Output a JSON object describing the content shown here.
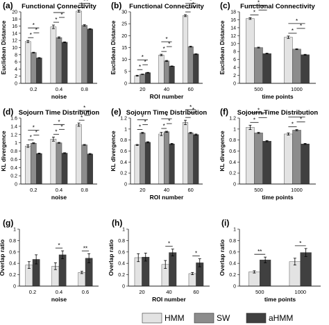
{
  "colors": {
    "HMM": "#e3e3e3",
    "SW": "#8c8c8c",
    "aHMM": "#404040",
    "axis": "#222222",
    "bracket": "#111111"
  },
  "legend": {
    "items": [
      "HMM",
      "SW",
      "aHMM"
    ]
  },
  "chart_data": [
    {
      "type": "bar",
      "panel_label": "(a)",
      "title": "Functional Connectivity",
      "xlabel": "noise",
      "ylabel": "Euclidean Distance",
      "ylim": [
        0,
        20
      ],
      "yticks": [
        "0",
        "2",
        "4",
        "6",
        "8",
        "10",
        "12",
        "14",
        "16",
        "18",
        "20"
      ],
      "categories": [
        "0.2",
        "0.4",
        "0.8"
      ],
      "series": [
        {
          "name": "HMM",
          "values": [
            11.7,
            15.8,
            20.2
          ]
        },
        {
          "name": "SW",
          "values": [
            8.6,
            12.8,
            16.2
          ]
        },
        {
          "name": "aHMM",
          "values": [
            7.1,
            11.5,
            15.2
          ]
        }
      ],
      "errors": [
        [
          0.3,
          0.5,
          0.3
        ],
        [
          0.1,
          0.2,
          0.2
        ],
        [
          0.1,
          0.1,
          0.1
        ]
      ],
      "significance": [
        {
          "cat": 0,
          "from": 0,
          "to": 1,
          "label": "*"
        },
        {
          "cat": 0,
          "from": 1,
          "to": 2,
          "label": "*"
        },
        {
          "cat": 0,
          "from": 0,
          "to": 2,
          "label": "*"
        },
        {
          "cat": 1,
          "from": 0,
          "to": 1,
          "label": "*"
        },
        {
          "cat": 1,
          "from": 1,
          "to": 2,
          "label": "*"
        },
        {
          "cat": 1,
          "from": 0,
          "to": 2,
          "label": "*"
        },
        {
          "cat": 2,
          "from": 0,
          "to": 1,
          "label": "*"
        },
        {
          "cat": 2,
          "from": 1,
          "to": 2,
          "label": "*"
        },
        {
          "cat": 2,
          "from": 0,
          "to": 2,
          "label": "*"
        }
      ]
    },
    {
      "type": "bar",
      "panel_label": "(b)",
      "title": "Functional Connectivity",
      "xlabel": "ROI number",
      "ylabel": "Euclidean Distance",
      "ylim": [
        0,
        30
      ],
      "yticks": [
        "0",
        "5",
        "10",
        "15",
        "20",
        "25",
        "30"
      ],
      "categories": [
        "20",
        "40",
        "60"
      ],
      "series": [
        {
          "name": "HMM",
          "values": [
            3.2,
            11.9,
            28.4
          ]
        },
        {
          "name": "SW",
          "values": [
            3.8,
            9.4,
            15.4
          ]
        },
        {
          "name": "aHMM",
          "values": [
            4.5,
            7.2,
            12.3
          ]
        }
      ],
      "errors": [
        [
          0.2,
          0.3,
          0.4
        ],
        [
          0.1,
          0.2,
          0.2
        ],
        [
          0.1,
          0.1,
          0.1
        ]
      ],
      "significance": [
        {
          "cat": 0,
          "from": 0,
          "to": 1,
          "label": "*"
        },
        {
          "cat": 0,
          "from": 1,
          "to": 2,
          "label": "*"
        },
        {
          "cat": 0,
          "from": 0,
          "to": 2,
          "label": "*"
        },
        {
          "cat": 1,
          "from": 0,
          "to": 1,
          "label": "*"
        },
        {
          "cat": 1,
          "from": 1,
          "to": 2,
          "label": "*"
        },
        {
          "cat": 1,
          "from": 0,
          "to": 2,
          "label": "*"
        },
        {
          "cat": 2,
          "from": 0,
          "to": 1,
          "label": "*"
        },
        {
          "cat": 2,
          "from": 1,
          "to": 2,
          "label": "*"
        },
        {
          "cat": 2,
          "from": 0,
          "to": 2,
          "label": "*"
        }
      ]
    },
    {
      "type": "bar",
      "panel_label": "(c)",
      "title": "Functional Connectivity",
      "xlabel": "time points",
      "ylabel": "Euclidean Distance",
      "ylim": [
        0,
        18
      ],
      "yticks": [
        "0",
        "2",
        "4",
        "6",
        "8",
        "10",
        "12",
        "14",
        "16",
        "18"
      ],
      "categories": [
        "500",
        "1000"
      ],
      "series": [
        {
          "name": "HMM",
          "values": [
            16.3,
            11.6
          ]
        },
        {
          "name": "SW",
          "values": [
            9.0,
            8.6
          ]
        },
        {
          "name": "aHMM",
          "values": [
            7.5,
            7.2
          ]
        }
      ],
      "errors": [
        [
          0.2,
          0.3
        ],
        [
          0.1,
          0.1
        ],
        [
          0.1,
          0.1
        ]
      ],
      "significance": [
        {
          "cat": 0,
          "from": 0,
          "to": 1,
          "label": "*"
        },
        {
          "cat": 0,
          "from": 1,
          "to": 2,
          "label": "*"
        },
        {
          "cat": 0,
          "from": 0,
          "to": 2,
          "label": "*"
        },
        {
          "cat": 1,
          "from": 0,
          "to": 1,
          "label": "*"
        },
        {
          "cat": 1,
          "from": 1,
          "to": 2,
          "label": "*"
        },
        {
          "cat": 1,
          "from": 0,
          "to": 2,
          "label": "*"
        }
      ]
    },
    {
      "type": "bar",
      "panel_label": "(d)",
      "title": "Sojourn Time Distribution",
      "xlabel": "noise",
      "ylabel": "KL divergence",
      "ylim": [
        0,
        1.6
      ],
      "yticks": [
        "0",
        "0.2",
        "0.4",
        "0.6",
        "0.8",
        "1",
        "1.2",
        "1.4",
        "1.6"
      ],
      "categories": [
        "0.2",
        "0.4",
        "0.8"
      ],
      "series": [
        {
          "name": "HMM",
          "values": [
            0.92,
            1.09,
            1.44
          ]
        },
        {
          "name": "SW",
          "values": [
            0.99,
            1.0,
            0.95
          ]
        },
        {
          "name": "aHMM",
          "values": [
            0.74,
            0.75,
            0.73
          ]
        }
      ],
      "errors": [
        [
          0.03,
          0.05,
          0.04
        ],
        [
          0.01,
          0.01,
          0.01
        ],
        [
          0.01,
          0.01,
          0.01
        ]
      ],
      "significance": [
        {
          "cat": 0,
          "from": 0,
          "to": 1,
          "label": "*"
        },
        {
          "cat": 0,
          "from": 1,
          "to": 2,
          "label": "*"
        },
        {
          "cat": 0,
          "from": 0,
          "to": 2,
          "label": "*"
        },
        {
          "cat": 1,
          "from": 0,
          "to": 1,
          "label": "*"
        },
        {
          "cat": 1,
          "from": 1,
          "to": 2,
          "label": "*"
        },
        {
          "cat": 1,
          "from": 0,
          "to": 2,
          "label": "*"
        },
        {
          "cat": 2,
          "from": 0,
          "to": 1,
          "label": "*"
        },
        {
          "cat": 2,
          "from": 1,
          "to": 2,
          "label": "*"
        },
        {
          "cat": 2,
          "from": 0,
          "to": 2,
          "label": "*"
        }
      ]
    },
    {
      "type": "bar",
      "panel_label": "(e)",
      "title": "Sojourn Time Distribution",
      "xlabel": "ROI number",
      "ylabel": "KL divergence",
      "ylim": [
        0,
        1.2
      ],
      "yticks": [
        "0",
        "0.2",
        "0.4",
        "0.6",
        "0.8",
        "1",
        "1.2"
      ],
      "categories": [
        "20",
        "40",
        "60"
      ],
      "series": [
        {
          "name": "HMM",
          "values": [
            0.71,
            0.91,
            1.12
          ]
        },
        {
          "name": "SW",
          "values": [
            0.93,
            0.95,
            0.93
          ]
        },
        {
          "name": "aHMM",
          "values": [
            0.76,
            0.73,
            0.9
          ]
        }
      ],
      "errors": [
        [
          0.01,
          0.03,
          0.04
        ],
        [
          0.01,
          0.01,
          0.01
        ],
        [
          0.01,
          0.01,
          0.01
        ]
      ],
      "significance": [
        {
          "cat": 0,
          "from": 0,
          "to": 1,
          "label": "*"
        },
        {
          "cat": 0,
          "from": 1,
          "to": 2,
          "label": "*"
        },
        {
          "cat": 0,
          "from": 0,
          "to": 2,
          "label": "*"
        },
        {
          "cat": 1,
          "from": 0,
          "to": 1,
          "label": "*"
        },
        {
          "cat": 1,
          "from": 1,
          "to": 2,
          "label": "*"
        },
        {
          "cat": 1,
          "from": 0,
          "to": 2,
          "label": "*"
        },
        {
          "cat": 2,
          "from": 0,
          "to": 1,
          "label": "*"
        },
        {
          "cat": 2,
          "from": 1,
          "to": 2,
          "label": "*"
        },
        {
          "cat": 2,
          "from": 0,
          "to": 2,
          "label": "*"
        }
      ]
    },
    {
      "type": "bar",
      "panel_label": "(f)",
      "title": "Sojourn Time Distribution",
      "xlabel": "time points",
      "ylabel": "KL divergence",
      "ylim": [
        0,
        1.2
      ],
      "yticks": [
        "0",
        "0.2",
        "0.4",
        "0.6",
        "0.8",
        "1",
        "1.2"
      ],
      "categories": [
        "500",
        "1000"
      ],
      "series": [
        {
          "name": "HMM",
          "values": [
            1.03,
            0.91
          ]
        },
        {
          "name": "SW",
          "values": [
            0.93,
            0.98
          ]
        },
        {
          "name": "aHMM",
          "values": [
            0.78,
            0.73
          ]
        }
      ],
      "errors": [
        [
          0.04,
          0.02
        ],
        [
          0.01,
          0.01
        ],
        [
          0.01,
          0.01
        ]
      ],
      "significance": [
        {
          "cat": 0,
          "from": 0,
          "to": 1,
          "label": "*"
        },
        {
          "cat": 0,
          "from": 1,
          "to": 2,
          "label": "*"
        },
        {
          "cat": 0,
          "from": 0,
          "to": 2,
          "label": "*"
        },
        {
          "cat": 1,
          "from": 0,
          "to": 1,
          "label": "*"
        },
        {
          "cat": 1,
          "from": 1,
          "to": 2,
          "label": "*"
        },
        {
          "cat": 1,
          "from": 0,
          "to": 2,
          "label": "*"
        }
      ]
    },
    {
      "type": "bar",
      "panel_label": "(g)",
      "title": "",
      "xlabel": "noise",
      "ylabel": "Overlap ratio",
      "ylim": [
        0,
        1
      ],
      "yticks": [
        "0",
        "0.2",
        "0.4",
        "0.6",
        "0.8",
        "1"
      ],
      "categories": [
        "0.2",
        "0.4",
        "0.6"
      ],
      "series": [
        {
          "name": "HMM",
          "values": [
            0.37,
            0.35,
            0.24
          ]
        },
        {
          "name": "aHMM",
          "values": [
            0.47,
            0.55,
            0.49
          ]
        }
      ],
      "errors": [
        [
          0.06,
          0.06,
          0.02
        ],
        [
          0.08,
          0.07,
          0.08
        ]
      ],
      "significance": [
        {
          "cat": 1,
          "from": 0,
          "to": 1,
          "label": "*"
        },
        {
          "cat": 2,
          "from": 0,
          "to": 1,
          "label": "**"
        }
      ]
    },
    {
      "type": "bar",
      "panel_label": "(h)",
      "title": "",
      "xlabel": "ROI number",
      "ylabel": "Overlap ratio",
      "ylim": [
        0,
        1
      ],
      "yticks": [
        "0",
        "0.2",
        "0.4",
        "0.6",
        "0.8",
        "1"
      ],
      "categories": [
        "20",
        "40",
        "60"
      ],
      "series": [
        {
          "name": "HMM",
          "values": [
            0.5,
            0.38,
            0.22
          ]
        },
        {
          "name": "aHMM",
          "values": [
            0.51,
            0.59,
            0.41
          ]
        }
      ],
      "errors": [
        [
          0.07,
          0.07,
          0.02
        ],
        [
          0.07,
          0.06,
          0.07
        ]
      ],
      "significance": [
        {
          "cat": 1,
          "from": 0,
          "to": 1,
          "label": "*"
        },
        {
          "cat": 2,
          "from": 0,
          "to": 1,
          "label": "*"
        }
      ]
    },
    {
      "type": "bar",
      "panel_label": "(i)",
      "title": "",
      "xlabel": "time points",
      "ylabel": "Overlap ratio",
      "ylim": [
        0,
        1
      ],
      "yticks": [
        "0",
        "0.2",
        "0.4",
        "0.6",
        "0.8",
        "1"
      ],
      "categories": [
        "500",
        "1000"
      ],
      "series": [
        {
          "name": "HMM",
          "values": [
            0.25,
            0.43
          ]
        },
        {
          "name": "aHMM",
          "values": [
            0.46,
            0.59
          ]
        }
      ],
      "errors": [
        [
          0.02,
          0.06
        ],
        [
          0.05,
          0.07
        ]
      ],
      "significance": [
        {
          "cat": 0,
          "from": 0,
          "to": 1,
          "label": "**"
        },
        {
          "cat": 1,
          "from": 0,
          "to": 1,
          "label": "*"
        }
      ]
    }
  ]
}
